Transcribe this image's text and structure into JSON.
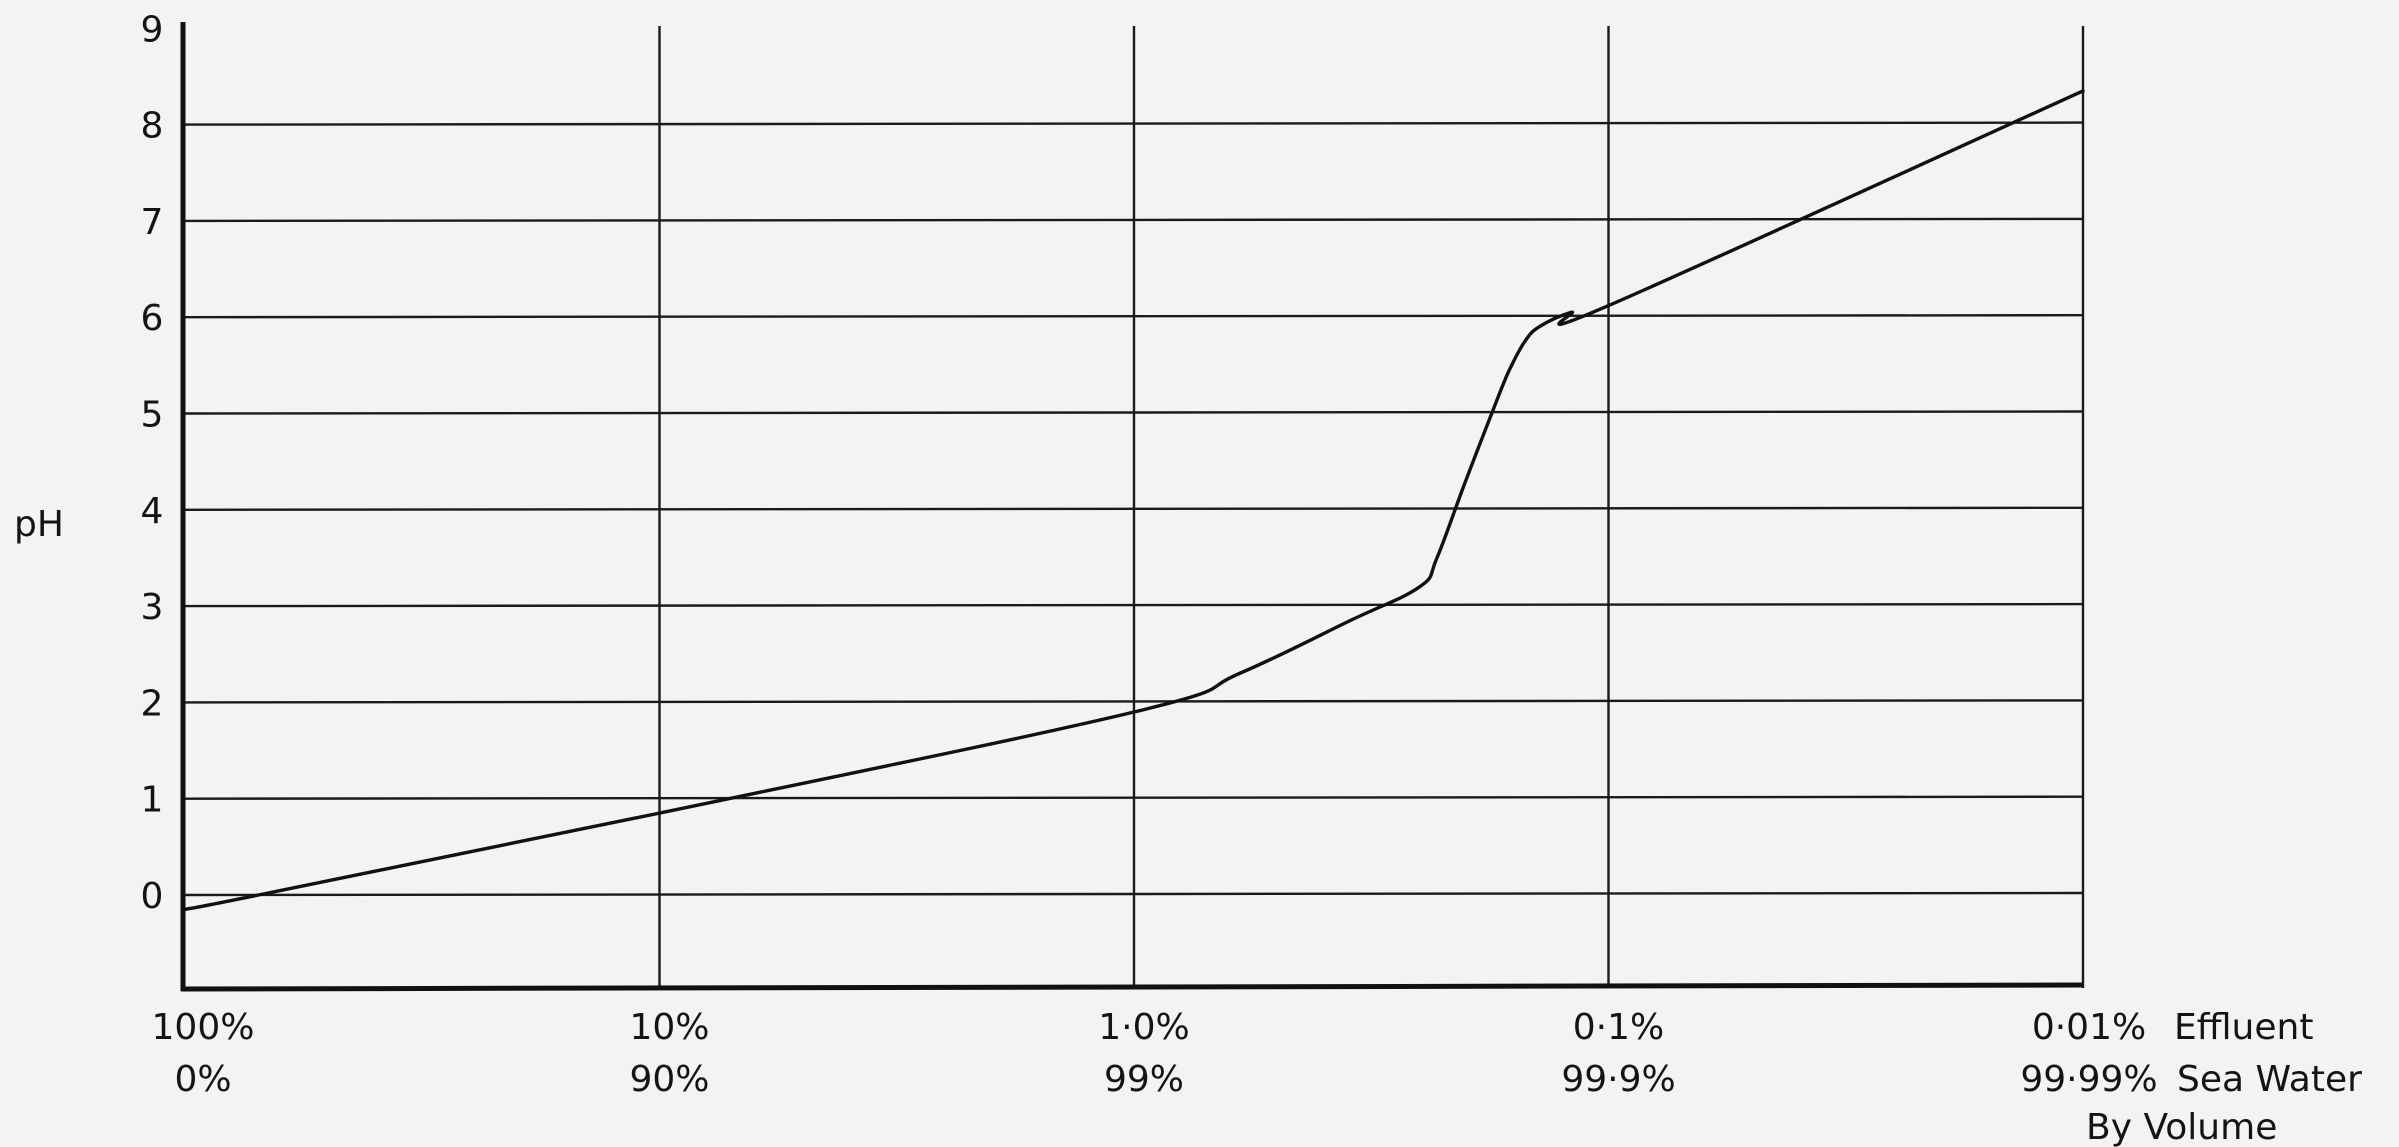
{
  "chart_data": {
    "type": "line",
    "title": "",
    "ylabel": "pH",
    "xscale": "log",
    "ylim": [
      -1,
      9
    ],
    "yticks": [
      "0",
      "1",
      "2",
      "3",
      "4",
      "5",
      "6",
      "7",
      "8",
      "9"
    ],
    "x_tick_labels": [
      {
        "effluent": "100%",
        "sea_water": "0%"
      },
      {
        "effluent": "10%",
        "sea_water": "90%"
      },
      {
        "effluent": "1·0%",
        "sea_water": "99%"
      },
      {
        "effluent": "0·1%",
        "sea_water": "99·9%"
      },
      {
        "effluent": "0·01%",
        "sea_water": "99·99%"
      }
    ],
    "x_legend": {
      "effluent": "Effluent",
      "sea_water": "Sea Water",
      "basis": "By Volume"
    },
    "grid": true,
    "series": [
      {
        "x_effluent_percent": [
          100,
          70,
          10,
          1.0,
          0.6,
          0.35,
          0.25,
          0.23,
          0.2,
          0.17,
          0.16,
          0.15,
          0.14,
          0.12,
          0.1,
          0.01
        ],
        "y": [
          -0.15,
          0.0,
          0.85,
          1.9,
          2.3,
          2.85,
          3.2,
          3.5,
          4.3,
          5.2,
          5.5,
          5.75,
          5.9,
          6.05,
          6.12,
          8.35
        ]
      }
    ]
  }
}
